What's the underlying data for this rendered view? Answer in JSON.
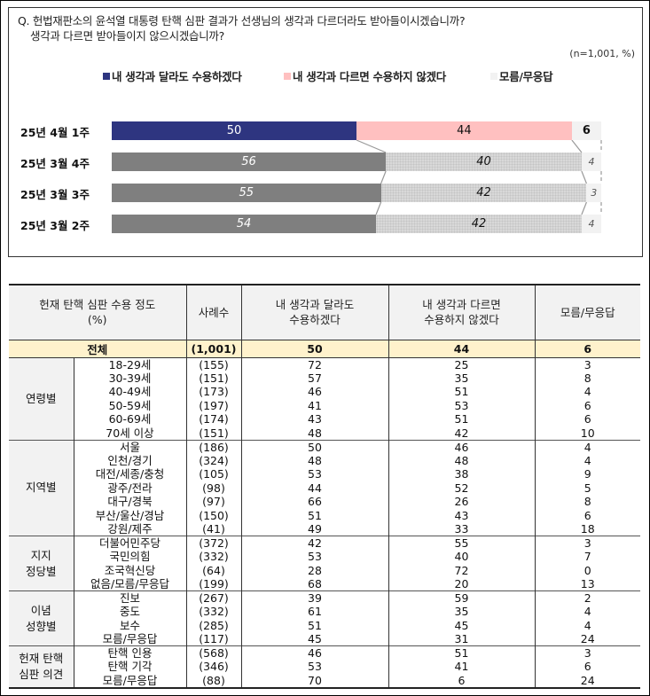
{
  "question": {
    "line1": "Q. 헌법재판소의 윤석열 대통령 탄핵 심판 결과가 선생님의 생각과 다르더라도 받아들이시겠습니까?",
    "line2": "생각과 다르면 받아들이지 않으시겠습니까?"
  },
  "unit": "(n=1,001, %)",
  "legend": [
    {
      "label": "내 생각과 달라도 수용하겠다",
      "color": "#2e3580"
    },
    {
      "label": "내 생각과 다르면 수용하지 않겠다",
      "color": "#ffc0c0"
    },
    {
      "label": "모름/무응답",
      "color": "#f2f2f2"
    }
  ],
  "chart_data": {
    "type": "bar",
    "orientation": "horizontal-stacked-100",
    "title": "헌법재판소의 윤석열 대통령 탄핵 심판 결과 수용 여부",
    "unit": "%",
    "n": 1001,
    "categories": [
      "25년 4월 1주",
      "25년 3월 4주",
      "25년 3월 3주",
      "25년 3월 2주"
    ],
    "series": [
      {
        "name": "내 생각과 달라도 수용하겠다",
        "values": [
          50,
          56,
          55,
          54
        ]
      },
      {
        "name": "내 생각과 다르면 수용하지 않겠다",
        "values": [
          44,
          40,
          42,
          42
        ]
      },
      {
        "name": "모름/무응답",
        "values": [
          6,
          4,
          3,
          4
        ]
      }
    ],
    "legend_position": "top",
    "grid": false
  },
  "table": {
    "headers": [
      "헌재 탄핵 심판 수용 정도\n(%)",
      "사례수",
      "내 생각과 달라도\n수용하겠다",
      "내 생각과 다르면\n수용하지 않겠다",
      "모름/무응답"
    ],
    "header_line1": [
      "헌재 탄핵 심판 수용 정도",
      "사례수",
      "내 생각과 달라도",
      "내 생각과 다르면",
      "모름/무응답"
    ],
    "header_line2": [
      "(%)",
      "",
      "수용하겠다",
      "수용하지 않겠다",
      ""
    ],
    "total": {
      "label": "전체",
      "n": "(1,001)",
      "a": "50",
      "b": "44",
      "c": "6"
    },
    "groups": [
      {
        "name": "연령별",
        "rows": [
          {
            "label": "18-29세",
            "n": "(155)",
            "a": "72",
            "b": "25",
            "c": "3"
          },
          {
            "label": "30-39세",
            "n": "(151)",
            "a": "57",
            "b": "35",
            "c": "8"
          },
          {
            "label": "40-49세",
            "n": "(173)",
            "a": "46",
            "b": "51",
            "c": "4"
          },
          {
            "label": "50-59세",
            "n": "(197)",
            "a": "41",
            "b": "53",
            "c": "6"
          },
          {
            "label": "60-69세",
            "n": "(174)",
            "a": "43",
            "b": "51",
            "c": "6"
          },
          {
            "label": "70세 이상",
            "n": "(151)",
            "a": "48",
            "b": "42",
            "c": "10"
          }
        ]
      },
      {
        "name": "지역별",
        "rows": [
          {
            "label": "서울",
            "n": "(186)",
            "a": "50",
            "b": "46",
            "c": "4"
          },
          {
            "label": "인천/경기",
            "n": "(324)",
            "a": "48",
            "b": "48",
            "c": "4"
          },
          {
            "label": "대전/세종/충청",
            "n": "(105)",
            "a": "53",
            "b": "38",
            "c": "9"
          },
          {
            "label": "광주/전라",
            "n": "(98)",
            "a": "44",
            "b": "52",
            "c": "5"
          },
          {
            "label": "대구/경북",
            "n": "(97)",
            "a": "66",
            "b": "26",
            "c": "8"
          },
          {
            "label": "부산/울산/경남",
            "n": "(150)",
            "a": "51",
            "b": "43",
            "c": "6"
          },
          {
            "label": "강원/제주",
            "n": "(41)",
            "a": "49",
            "b": "33",
            "c": "18"
          }
        ]
      },
      {
        "name": "지지\n정당별",
        "rows": [
          {
            "label": "더불어민주당",
            "n": "(372)",
            "a": "42",
            "b": "55",
            "c": "3"
          },
          {
            "label": "국민의힘",
            "n": "(332)",
            "a": "53",
            "b": "40",
            "c": "7"
          },
          {
            "label": "조국혁신당",
            "n": "(64)",
            "a": "28",
            "b": "72",
            "c": "0"
          },
          {
            "label": "없음/모름/무응답",
            "n": "(199)",
            "a": "68",
            "b": "20",
            "c": "13"
          }
        ]
      },
      {
        "name": "이념\n성향별",
        "rows": [
          {
            "label": "진보",
            "n": "(267)",
            "a": "39",
            "b": "59",
            "c": "2"
          },
          {
            "label": "중도",
            "n": "(332)",
            "a": "61",
            "b": "35",
            "c": "4"
          },
          {
            "label": "보수",
            "n": "(285)",
            "a": "51",
            "b": "45",
            "c": "4"
          },
          {
            "label": "모름/무응답",
            "n": "(117)",
            "a": "45",
            "b": "31",
            "c": "24"
          }
        ]
      },
      {
        "name": "헌재 탄핵\n심판 의견",
        "rows": [
          {
            "label": "탄핵 인용",
            "n": "(568)",
            "a": "46",
            "b": "51",
            "c": "3"
          },
          {
            "label": "탄핵 기각",
            "n": "(346)",
            "a": "53",
            "b": "41",
            "c": "6"
          },
          {
            "label": "모름/무응답",
            "n": "(88)",
            "a": "70",
            "b": "6",
            "c": "24"
          }
        ]
      }
    ]
  }
}
